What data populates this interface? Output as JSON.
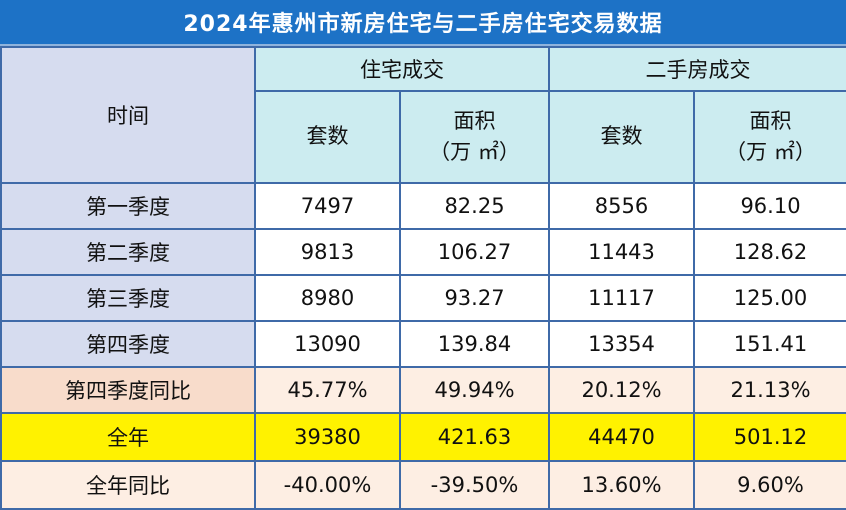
{
  "title": "2024年惠州市新房住宅与二手房住宅交易数据",
  "header": {
    "time": "时间",
    "groups": [
      "住宅成交",
      "二手房成交"
    ],
    "sets": "套数",
    "area_line1": "面积",
    "area_line2": "（万 ㎡）"
  },
  "rows": [
    {
      "label": "第一季度",
      "values": [
        "7497",
        "82.25",
        "8556",
        "96.10"
      ]
    },
    {
      "label": "第二季度",
      "values": [
        "9813",
        "106.27",
        "11443",
        "128.62"
      ]
    },
    {
      "label": "第三季度",
      "values": [
        "8980",
        "93.27",
        "11117",
        "125.00"
      ]
    },
    {
      "label": "第四季度",
      "values": [
        "13090",
        "139.84",
        "13354",
        "151.41"
      ]
    },
    {
      "label": "第四季度同比",
      "values": [
        "45.77%",
        "49.94%",
        "20.12%",
        "21.13%"
      ]
    },
    {
      "label": "全年",
      "values": [
        "39380",
        "421.63",
        "44470",
        "501.12"
      ]
    },
    {
      "label": "全年同比",
      "values": [
        "-40.00%",
        "-39.50%",
        "13.60%",
        "9.60%"
      ]
    }
  ],
  "colors": {
    "title_bg": "#1d72c6",
    "header_bg": "#ccecf0",
    "label_bg": "#d6dcef",
    "yoy_bg": "#fdeee3",
    "total_bg": "#fff200"
  }
}
